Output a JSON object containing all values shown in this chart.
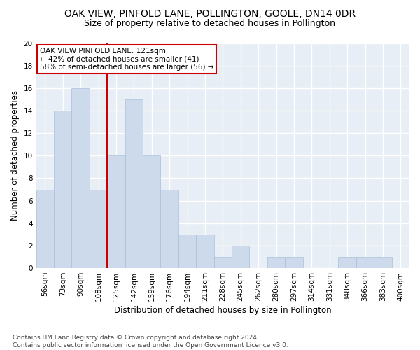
{
  "title": "OAK VIEW, PINFOLD LANE, POLLINGTON, GOOLE, DN14 0DR",
  "subtitle": "Size of property relative to detached houses in Pollington",
  "xlabel": "Distribution of detached houses by size in Pollington",
  "ylabel": "Number of detached properties",
  "categories": [
    "56sqm",
    "73sqm",
    "90sqm",
    "108sqm",
    "125sqm",
    "142sqm",
    "159sqm",
    "176sqm",
    "194sqm",
    "211sqm",
    "228sqm",
    "245sqm",
    "262sqm",
    "280sqm",
    "297sqm",
    "314sqm",
    "331sqm",
    "348sqm",
    "366sqm",
    "383sqm",
    "400sqm"
  ],
  "values": [
    7,
    14,
    16,
    7,
    10,
    15,
    10,
    7,
    3,
    3,
    1,
    2,
    0,
    1,
    1,
    0,
    0,
    1,
    1,
    1,
    0
  ],
  "bar_color": "#ccdaeb",
  "bar_edge_color": "#aabfda",
  "bar_width": 1.0,
  "vline_x": 4.5,
  "vline_color": "#cc0000",
  "annotation_text": "OAK VIEW PINFOLD LANE: 121sqm\n← 42% of detached houses are smaller (41)\n58% of semi-detached houses are larger (56) →",
  "annotation_box_color": "#ffffff",
  "annotation_box_edge": "#cc0000",
  "ylim": [
    0,
    20
  ],
  "yticks": [
    0,
    2,
    4,
    6,
    8,
    10,
    12,
    14,
    16,
    18,
    20
  ],
  "footnote": "Contains HM Land Registry data © Crown copyright and database right 2024.\nContains public sector information licensed under the Open Government Licence v3.0.",
  "fig_facecolor": "#ffffff",
  "bg_color": "#e8eef5",
  "grid_color": "#ffffff",
  "title_fontsize": 10,
  "subtitle_fontsize": 9,
  "xlabel_fontsize": 8.5,
  "ylabel_fontsize": 8.5,
  "tick_fontsize": 7.5,
  "footnote_fontsize": 6.5,
  "ann_fontsize": 7.5
}
